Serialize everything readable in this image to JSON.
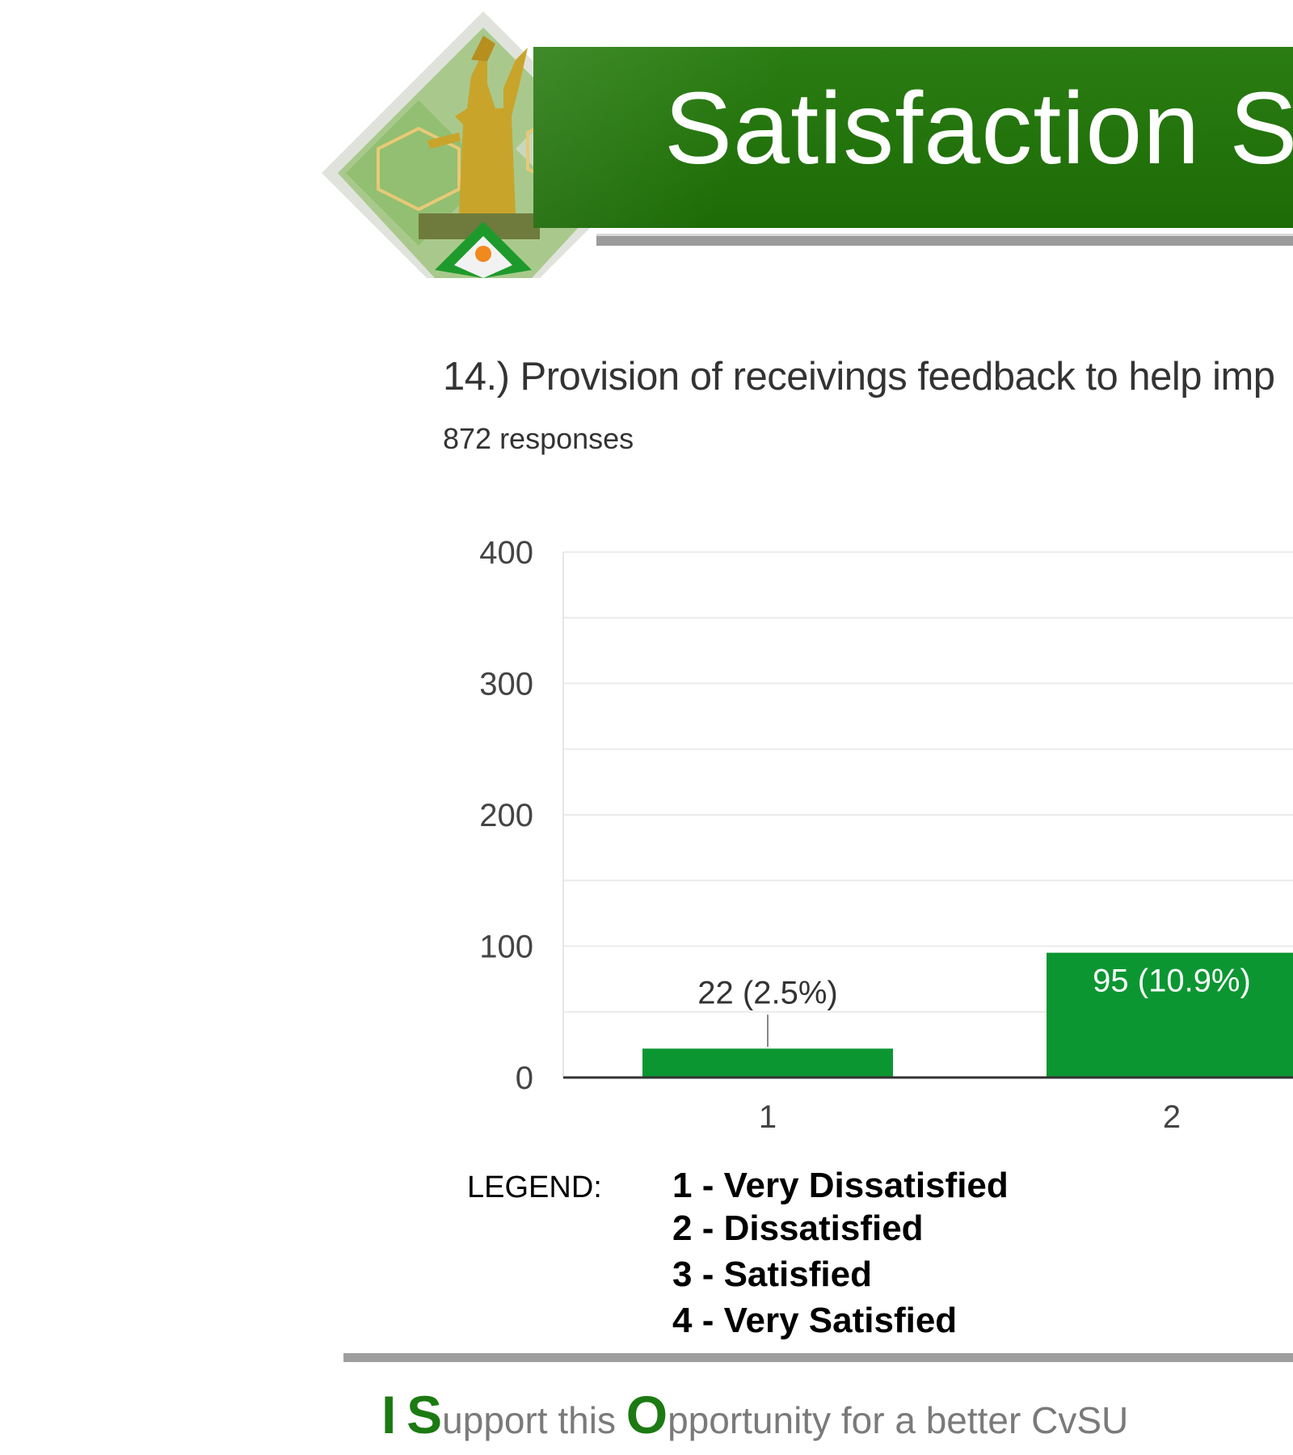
{
  "banner": {
    "title": "Satisfaction S"
  },
  "question": {
    "text": "14.) Provision of receivings feedback to help imp",
    "responses": "872 responses"
  },
  "chart_data": {
    "type": "bar",
    "title": "",
    "xlabel": "",
    "ylabel": "",
    "ylim": [
      0,
      400
    ],
    "grid": true,
    "yticks": [
      "0",
      "100",
      "200",
      "300",
      "400"
    ],
    "categories": [
      "1",
      "2"
    ],
    "values": [
      22,
      95
    ],
    "data_labels": [
      "22 (2.5%)",
      "95 (10.9%)"
    ],
    "bar_color": "#0c9632"
  },
  "legend": {
    "label": "LEGEND:",
    "items": [
      "1  -  Very Dissatisfied",
      "2 -  Dissatisfied",
      "3 -  Satisfied",
      "4 - Very Satisfied"
    ]
  },
  "footer": {
    "i": "I",
    "s": "S",
    "s_rest": "upport this",
    "o": "O",
    "o_rest": "pportunity for a better CvSU"
  }
}
